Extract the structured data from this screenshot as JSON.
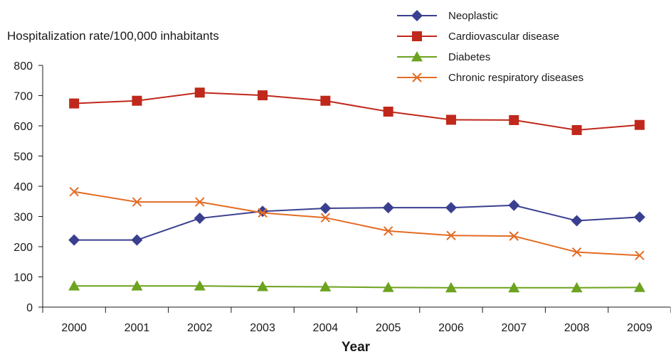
{
  "chart_data": {
    "type": "line",
    "x": [
      "2000",
      "2001",
      "2002",
      "2003",
      "2004",
      "2005",
      "2006",
      "2007",
      "2008",
      "2009"
    ],
    "ylabel": "Hospitalization rate/100,000 inhabitants",
    "xlabel": "Year",
    "ylim": [
      0,
      800
    ],
    "yticks": [
      "0",
      "100",
      "200",
      "300",
      "400",
      "500",
      "600",
      "700",
      "800"
    ],
    "grid": false,
    "legend_position": "top-right",
    "series": [
      {
        "name": "Neoplastic",
        "color": "#3b3f8f",
        "marker": "diamond",
        "values": [
          222,
          222,
          294,
          317,
          327,
          329,
          329,
          337,
          286,
          298
        ]
      },
      {
        "name": "Cardiovascular disease",
        "color": "#c0281b",
        "marker": "square",
        "values": [
          674,
          683,
          710,
          701,
          683,
          647,
          620,
          619,
          586,
          603
        ]
      },
      {
        "name": "Diabetes",
        "color": "#6ca31f",
        "marker": "triangle",
        "values": [
          70,
          70,
          70,
          68,
          67,
          65,
          64,
          64,
          64,
          65
        ]
      },
      {
        "name": "Chronic respiratory diseases",
        "color": "#e36c24",
        "marker": "x",
        "values": [
          382,
          348,
          348,
          312,
          296,
          252,
          237,
          235,
          182,
          171
        ]
      }
    ]
  }
}
